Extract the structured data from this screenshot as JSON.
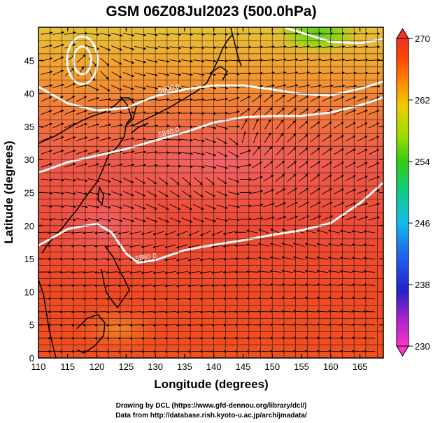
{
  "chart_data": {
    "type": "heatmap",
    "title": "GSM 06Z08Jul2023 (500.0hPa)",
    "xlabel": "Longitude (degrees)",
    "ylabel": "Latitude  (degrees)",
    "xlim": [
      110,
      169
    ],
    "ylim": [
      0,
      50
    ],
    "x_ticks": [
      "110",
      "115",
      "120",
      "125",
      "130",
      "135",
      "140",
      "145",
      "150",
      "155",
      "160",
      "165"
    ],
    "y_ticks": [
      "0",
      "5",
      "10",
      "15",
      "20",
      "25",
      "30",
      "35",
      "40",
      "45"
    ],
    "grid": true,
    "colorbar": {
      "position": "right",
      "min": 230,
      "max": 270,
      "ticks": [
        "230",
        "238",
        "246",
        "254",
        "262",
        "270"
      ],
      "colors": [
        "#ff33cc",
        "#aa22cc",
        "#2222cc",
        "#2266ee",
        "#11bbee",
        "#11cc88",
        "#33cc11",
        "#99dd00",
        "#eecc00",
        "#ff8800",
        "#ff4400",
        "#ee3322"
      ]
    },
    "contours": [
      {
        "label": "5800.0",
        "x": [
          110,
          115,
          120,
          125,
          130,
          135,
          140,
          145,
          150,
          155,
          160,
          165,
          169
        ],
        "y": [
          41.0,
          38.5,
          37.4,
          37.8,
          39.6,
          40.6,
          41.2,
          41.2,
          40.6,
          39.9,
          39.7,
          40.7,
          41.8
        ]
      },
      {
        "label": "5840.0",
        "x": [
          110,
          115,
          120,
          125,
          130,
          135,
          140,
          145,
          150,
          155,
          160,
          165,
          169
        ],
        "y": [
          28.0,
          29.6,
          30.6,
          31.6,
          32.9,
          34.1,
          35.6,
          36.4,
          36.6,
          36.6,
          37.1,
          38.2,
          39.4
        ]
      },
      {
        "label": "5880.0",
        "x": [
          110,
          115,
          120,
          122.5,
          125,
          127,
          130,
          135,
          140,
          145,
          150,
          155,
          160,
          165,
          169
        ],
        "y": [
          17.0,
          19.5,
          20.3,
          19.0,
          15.8,
          14.4,
          14.8,
          16.3,
          17.1,
          17.8,
          18.6,
          19.3,
          20.4,
          23.4,
          26.5
        ]
      },
      {
        "label": "",
        "x": [
          152,
          156,
          160,
          165,
          169
        ],
        "y": [
          50.0,
          48.9,
          47.8,
          47.6,
          48.2
        ]
      }
    ],
    "closed_contours": [
      {
        "cx": 117.5,
        "cy": 45.0,
        "rx": 2.6,
        "ry": 3.6
      },
      {
        "cx": 117.5,
        "cy": 45.0,
        "rx": 1.5,
        "ry": 2.1
      }
    ]
  },
  "credits": {
    "line1": "Drawing by DCL (https://www.gfd-dennou.org/library/dcl/)",
    "line2": "Data from http://database.rish.kyoto-u.ac.jp/arch/jmadata/"
  }
}
